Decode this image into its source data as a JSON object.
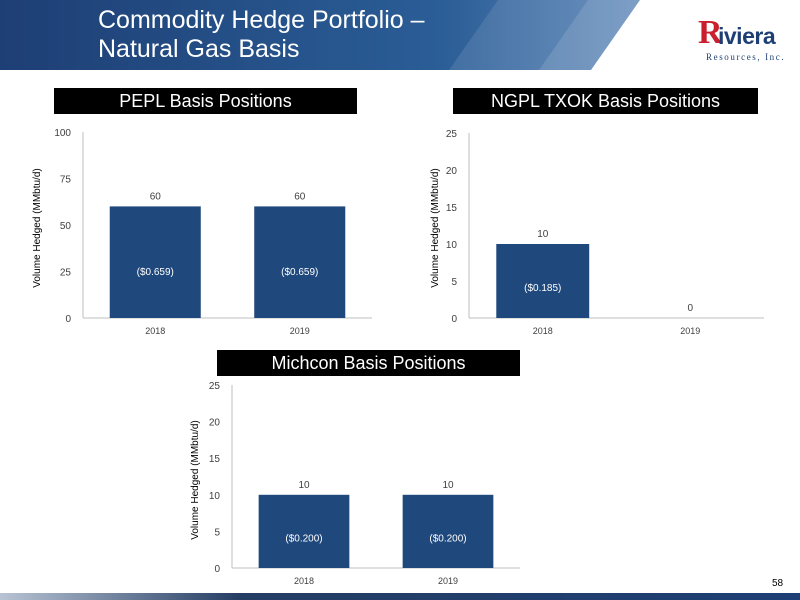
{
  "header": {
    "title_line1": "Commodity Hedge Portfolio –",
    "title_line2": "Natural Gas Basis",
    "logo_initial": "R",
    "logo_name": "iviera",
    "logo_subtitle": "Resources, Inc."
  },
  "page_number": "58",
  "colors": {
    "bar": "#1f487c",
    "banner": "#1d3f75",
    "logo_red": "#c8202e"
  },
  "chart_data": [
    {
      "type": "bar",
      "title": "PEPL Basis Positions",
      "ylabel": "Volume Hedged (MMbtu/d)",
      "categories": [
        "2018",
        "2019"
      ],
      "values": [
        60,
        60
      ],
      "value_labels": [
        "60",
        "60"
      ],
      "price_labels": [
        "($0.659)",
        "($0.659)"
      ],
      "ylim": [
        0,
        100
      ],
      "yticks": [
        0,
        25,
        50,
        75,
        100
      ],
      "grid": false
    },
    {
      "type": "bar",
      "title": "NGPL TXOK Basis Positions",
      "ylabel": "Volume Hedged (MMbtu/d)",
      "categories": [
        "2018",
        "2019"
      ],
      "values": [
        10,
        0
      ],
      "value_labels": [
        "10",
        "0"
      ],
      "price_labels": [
        "($0.185)",
        ""
      ],
      "ylim": [
        0,
        25
      ],
      "yticks": [
        0,
        5,
        10,
        15,
        20,
        25
      ],
      "grid": false
    },
    {
      "type": "bar",
      "title": "Michcon Basis Positions",
      "ylabel": "Volume Hedged (MMbtu/d)",
      "categories": [
        "2018",
        "2019"
      ],
      "values": [
        10,
        10
      ],
      "value_labels": [
        "10",
        "10"
      ],
      "price_labels": [
        "($0.200)",
        "($0.200)"
      ],
      "ylim": [
        0,
        25
      ],
      "yticks": [
        0,
        5,
        10,
        15,
        20,
        25
      ],
      "grid": false
    }
  ]
}
